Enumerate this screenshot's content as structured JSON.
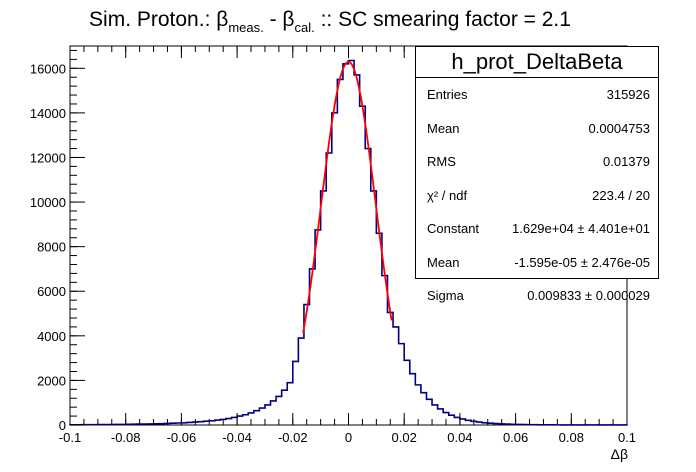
{
  "title": {
    "prefix": "Sim. Proton.: ",
    "b1": "β",
    "sub1": "meas.",
    "mid": " - ",
    "b2": "β",
    "sub2": "cal.",
    "suffix": " :: SC smearing factor = 2.1"
  },
  "stats_box": {
    "name": "h_prot_DeltaBeta",
    "rows": [
      {
        "label": "Entries",
        "value": "315926"
      },
      {
        "label": "Mean",
        "value": "0.0004753"
      },
      {
        "label": "RMS",
        "value": "0.01379"
      },
      {
        "label": "χ² / ndf",
        "value": "223.4 / 20"
      },
      {
        "label": "Constant",
        "value": "1.629e+04 ± 4.401e+01"
      },
      {
        "label": "Mean",
        "value": "-1.595e-05 ± 2.476e-05"
      },
      {
        "label": "Sigma",
        "value": "0.009833 ± 0.000029"
      }
    ]
  },
  "chart_data": {
    "type": "bar",
    "subtype": "histogram-step",
    "xlabel": "Δβ",
    "ylabel": "",
    "xlim": [
      -0.1,
      0.1
    ],
    "ylim": [
      0,
      17000
    ],
    "x_ticks": [
      -0.1,
      -0.08,
      -0.06,
      -0.04,
      -0.02,
      0,
      0.02,
      0.04,
      0.06,
      0.08,
      0.1
    ],
    "x_tick_labels": [
      "-0.1",
      "-0.08",
      "-0.06",
      "-0.04",
      "-0.02",
      "0",
      "0.02",
      "0.04",
      "0.06",
      "0.08",
      "0.1"
    ],
    "y_ticks": [
      0,
      2000,
      4000,
      6000,
      8000,
      10000,
      12000,
      14000,
      16000
    ],
    "y_tick_labels": [
      "0",
      "2000",
      "4000",
      "6000",
      "8000",
      "10000",
      "12000",
      "14000",
      "16000"
    ],
    "bin_width": 0.002,
    "bin_centers": [
      -0.099,
      -0.097,
      -0.095,
      -0.093,
      -0.091,
      -0.089,
      -0.087,
      -0.085,
      -0.083,
      -0.081,
      -0.079,
      -0.077,
      -0.075,
      -0.073,
      -0.071,
      -0.069,
      -0.067,
      -0.065,
      -0.063,
      -0.061,
      -0.059,
      -0.057,
      -0.055,
      -0.053,
      -0.051,
      -0.049,
      -0.047,
      -0.045,
      -0.043,
      -0.041,
      -0.039,
      -0.037,
      -0.035,
      -0.033,
      -0.031,
      -0.029,
      -0.027,
      -0.025,
      -0.023,
      -0.021,
      -0.019,
      -0.017,
      -0.015,
      -0.013,
      -0.011,
      -0.009,
      -0.007,
      -0.005,
      -0.003,
      -0.001,
      0.001,
      0.003,
      0.005,
      0.007,
      0.009,
      0.011,
      0.013,
      0.015,
      0.017,
      0.019,
      0.021,
      0.023,
      0.025,
      0.027,
      0.029,
      0.031,
      0.033,
      0.035,
      0.037,
      0.039,
      0.041,
      0.043,
      0.045,
      0.047,
      0.049,
      0.051,
      0.053,
      0.055,
      0.057,
      0.059,
      0.061,
      0.063,
      0.065,
      0.067,
      0.069,
      0.071,
      0.073,
      0.075,
      0.077,
      0.079,
      0.081,
      0.083,
      0.085,
      0.087,
      0.089,
      0.091,
      0.093,
      0.095,
      0.097,
      0.099
    ],
    "series": [
      {
        "type": "histogram",
        "color": "#000080",
        "values": [
          10,
          10,
          12,
          14,
          16,
          18,
          20,
          22,
          25,
          28,
          30,
          35,
          40,
          45,
          50,
          55,
          60,
          70,
          80,
          90,
          100,
          115,
          130,
          150,
          170,
          190,
          220,
          250,
          290,
          340,
          400,
          460,
          540,
          640,
          760,
          900,
          1080,
          1280,
          1560,
          1900,
          2850,
          3900,
          5400,
          7000,
          8750,
          10500,
          12200,
          14000,
          15500,
          16200,
          16350,
          15700,
          14300,
          12400,
          10500,
          8600,
          6700,
          5050,
          4400,
          3650,
          2900,
          2300,
          1800,
          1450,
          1150,
          900,
          720,
          560,
          440,
          340,
          270,
          210,
          165,
          130,
          100,
          80,
          65,
          50,
          40,
          32,
          25,
          20,
          16,
          13,
          10,
          8,
          7,
          6,
          5,
          4,
          4,
          3,
          3,
          2,
          2,
          2,
          1,
          1,
          1,
          1
        ]
      },
      {
        "type": "gaussian-fit",
        "color": "#ff0000",
        "range": [
          -0.0163,
          0.0155
        ],
        "constant": 16290,
        "mean": -1.595e-05,
        "sigma": 0.009833
      }
    ]
  }
}
